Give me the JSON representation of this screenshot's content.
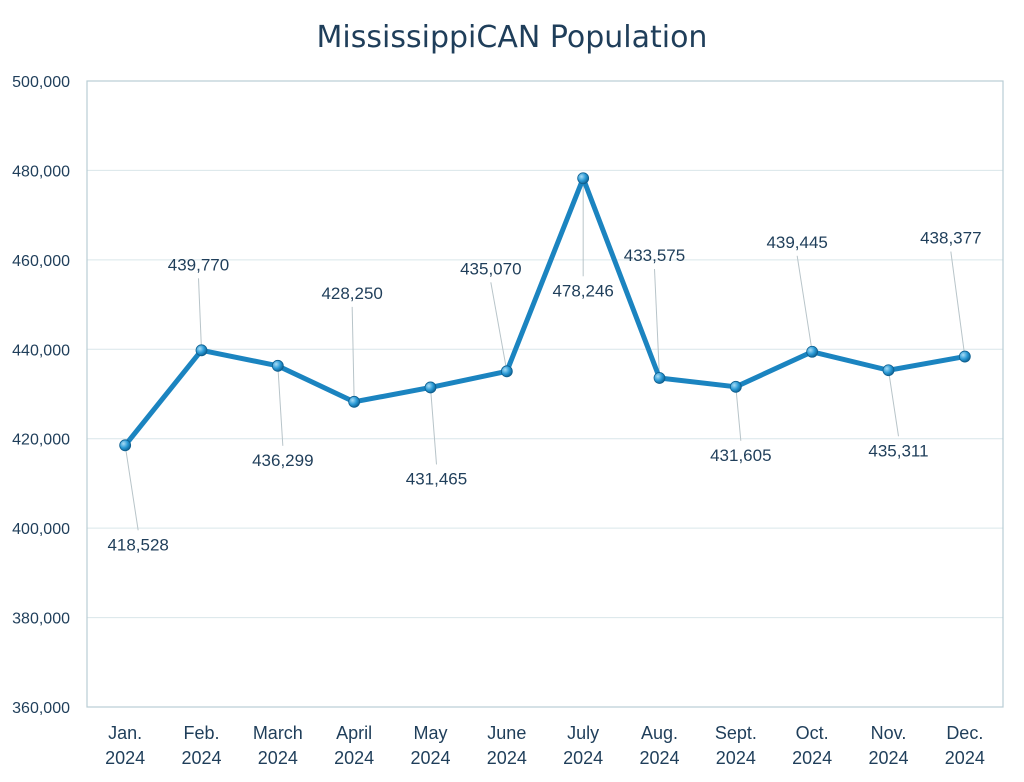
{
  "chart_data": {
    "type": "line",
    "title": "MississippiCAN Population",
    "categories": [
      [
        "Jan.",
        "2024"
      ],
      [
        "Feb.",
        "2024"
      ],
      [
        "March",
        "2024"
      ],
      [
        "April",
        "2024"
      ],
      [
        "May",
        "2024"
      ],
      [
        "June",
        "2024"
      ],
      [
        "July",
        "2024"
      ],
      [
        "Aug.",
        "2024"
      ],
      [
        "Sept.",
        "2024"
      ],
      [
        "Oct.",
        "2024"
      ],
      [
        "Nov.",
        "2024"
      ],
      [
        "Dec.",
        "2024"
      ]
    ],
    "values": [
      418528,
      439770,
      436299,
      428250,
      431465,
      435070,
      478246,
      433575,
      431605,
      439445,
      435311,
      438377
    ],
    "data_labels": [
      "418,528",
      "439,770",
      "436,299",
      "428,250",
      "431,465",
      "435,070",
      "478,246",
      "433,575",
      "431,605",
      "439,445",
      "435,311",
      "438,377"
    ],
    "label_positions": [
      "below",
      "above",
      "below",
      "above",
      "below",
      "above",
      "below",
      "above",
      "below",
      "above",
      "below",
      "above"
    ],
    "ylim": [
      360000,
      500000
    ],
    "yticks": [
      360000,
      380000,
      400000,
      420000,
      440000,
      460000,
      480000,
      500000
    ],
    "ytick_labels": [
      "360,000",
      "380,000",
      "400,000",
      "420,000",
      "440,000",
      "460,000",
      "480,000",
      "500,000"
    ],
    "xlabel": "",
    "ylabel": "",
    "grid": true,
    "legend": "none",
    "line_color": "#1b84c0",
    "marker_color": "#2a9ad6"
  }
}
